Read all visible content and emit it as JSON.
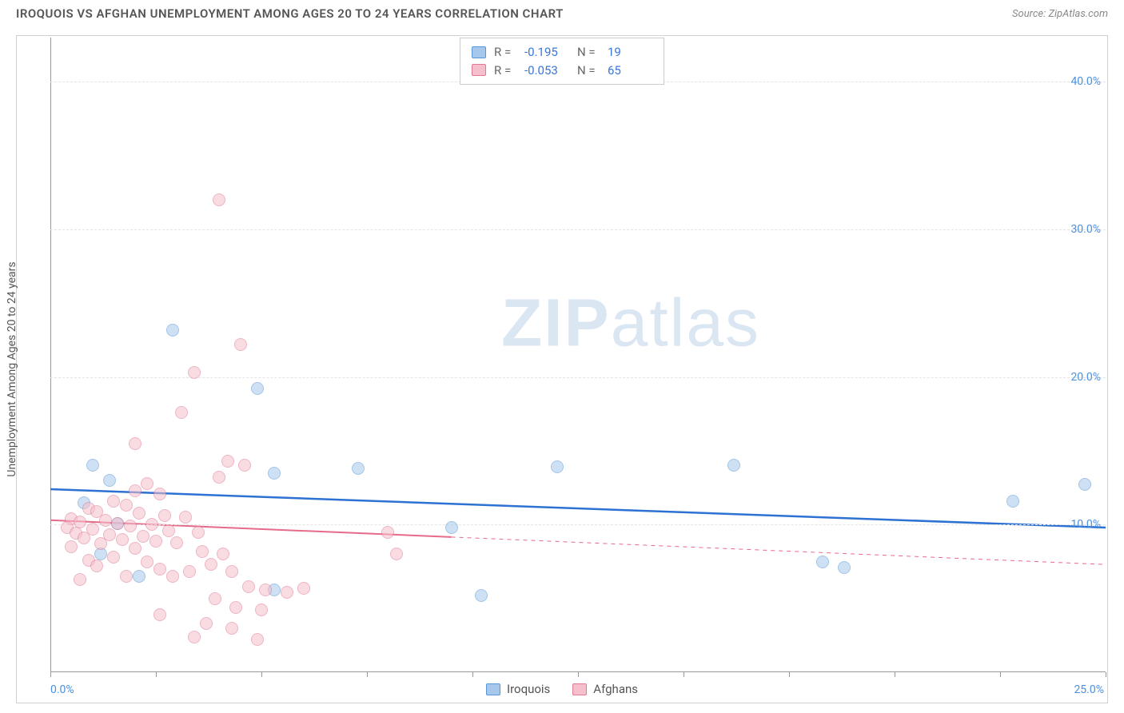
{
  "header": {
    "title": "IROQUOIS VS AFGHAN UNEMPLOYMENT AMONG AGES 20 TO 24 YEARS CORRELATION CHART",
    "source_prefix": "Source: ",
    "source_name": "ZipAtlas.com"
  },
  "chart": {
    "type": "scatter",
    "y_axis_label": "Unemployment Among Ages 20 to 24 years",
    "background_color": "#ffffff",
    "grid_color": "#e4e4e4",
    "axis_color": "#999999",
    "tick_label_color": "#4a90e2",
    "xlim": [
      0,
      25
    ],
    "ylim": [
      0,
      43
    ],
    "x_ticks": [
      0,
      2.5,
      5,
      7.5,
      10,
      12.5,
      15,
      17.5,
      20,
      22.5,
      25
    ],
    "y_ticks": [
      10,
      20,
      30,
      40
    ],
    "x_tick_labels": {
      "0": "0.0%",
      "25": "25.0%"
    },
    "y_tick_labels": {
      "10": "10.0%",
      "20": "20.0%",
      "30": "30.0%",
      "40": "40.0%"
    },
    "marker_radius": 8,
    "marker_stroke_width": 1.5,
    "watermark": {
      "zip": "ZIP",
      "atlas": "atlas"
    },
    "series": [
      {
        "name": "Iroquois",
        "fill_color": "#a6c8ec",
        "stroke_color": "#5a96d6",
        "fill_opacity": 0.55,
        "points": [
          [
            2.9,
            23.2
          ],
          [
            1.2,
            8.0
          ],
          [
            2.1,
            6.5
          ],
          [
            4.9,
            19.2
          ],
          [
            5.3,
            13.5
          ],
          [
            7.3,
            13.8
          ],
          [
            12.0,
            13.9
          ],
          [
            16.2,
            14.0
          ],
          [
            24.5,
            12.7
          ],
          [
            22.8,
            11.6
          ],
          [
            18.3,
            7.5
          ],
          [
            18.8,
            7.1
          ],
          [
            10.2,
            5.2
          ],
          [
            5.3,
            5.6
          ],
          [
            9.5,
            9.8
          ],
          [
            1.0,
            14.0
          ],
          [
            1.4,
            13.0
          ],
          [
            0.8,
            11.5
          ],
          [
            1.6,
            10.1
          ]
        ],
        "trend": {
          "color": "#2d72d2",
          "width": 2.5,
          "solid_xrange": [
            0,
            25
          ],
          "y_at_x0": 12.4,
          "y_at_xmax": 9.8,
          "dashed_xrange": null
        }
      },
      {
        "name": "Afghans",
        "fill_color": "#f5bfcb",
        "stroke_color": "#e07a94",
        "fill_opacity": 0.55,
        "points": [
          [
            4.0,
            32.0
          ],
          [
            4.5,
            22.2
          ],
          [
            3.4,
            20.3
          ],
          [
            3.1,
            17.6
          ],
          [
            4.2,
            14.3
          ],
          [
            4.6,
            14.0
          ],
          [
            4.0,
            13.2
          ],
          [
            2.3,
            12.8
          ],
          [
            2.0,
            12.3
          ],
          [
            2.6,
            12.1
          ],
          [
            1.5,
            11.6
          ],
          [
            1.8,
            11.3
          ],
          [
            0.9,
            11.1
          ],
          [
            1.1,
            10.9
          ],
          [
            2.1,
            10.8
          ],
          [
            2.7,
            10.6
          ],
          [
            3.2,
            10.5
          ],
          [
            0.5,
            10.4
          ],
          [
            1.3,
            10.3
          ],
          [
            0.7,
            10.2
          ],
          [
            1.6,
            10.1
          ],
          [
            2.4,
            10.0
          ],
          [
            1.9,
            9.9
          ],
          [
            0.4,
            9.8
          ],
          [
            1.0,
            9.7
          ],
          [
            2.8,
            9.6
          ],
          [
            3.5,
            9.5
          ],
          [
            0.6,
            9.4
          ],
          [
            1.4,
            9.3
          ],
          [
            2.2,
            9.2
          ],
          [
            0.8,
            9.1
          ],
          [
            1.7,
            9.0
          ],
          [
            2.5,
            8.9
          ],
          [
            3.0,
            8.8
          ],
          [
            1.2,
            8.7
          ],
          [
            0.5,
            8.5
          ],
          [
            2.0,
            8.4
          ],
          [
            3.6,
            8.2
          ],
          [
            4.1,
            8.0
          ],
          [
            1.5,
            7.8
          ],
          [
            0.9,
            7.6
          ],
          [
            2.3,
            7.5
          ],
          [
            3.8,
            7.3
          ],
          [
            1.1,
            7.2
          ],
          [
            2.6,
            7.0
          ],
          [
            4.3,
            6.8
          ],
          [
            3.3,
            6.8
          ],
          [
            1.8,
            6.5
          ],
          [
            0.7,
            6.3
          ],
          [
            2.9,
            6.5
          ],
          [
            4.7,
            5.8
          ],
          [
            5.1,
            5.6
          ],
          [
            5.6,
            5.4
          ],
          [
            6.0,
            5.7
          ],
          [
            3.9,
            5.0
          ],
          [
            4.4,
            4.4
          ],
          [
            5.0,
            4.2
          ],
          [
            2.6,
            3.9
          ],
          [
            3.7,
            3.3
          ],
          [
            4.3,
            3.0
          ],
          [
            4.9,
            2.2
          ],
          [
            3.4,
            2.4
          ],
          [
            8.2,
            8.0
          ],
          [
            8.0,
            9.5
          ],
          [
            2.0,
            15.5
          ]
        ],
        "trend": {
          "color": "#e66b8a",
          "width": 2,
          "solid_xrange": [
            0,
            9.5
          ],
          "dashed_xrange": [
            9.5,
            25
          ],
          "y_at_x0": 10.3,
          "y_at_xmax": 7.3
        }
      }
    ]
  },
  "stats_box": {
    "rows": [
      {
        "swatch_fill": "#a6c8ec",
        "swatch_stroke": "#5a96d6",
        "r_label": "R =",
        "r_value": "-0.195",
        "n_label": "N =",
        "n_value": "19"
      },
      {
        "swatch_fill": "#f5bfcb",
        "swatch_stroke": "#e07a94",
        "r_label": "R =",
        "r_value": "-0.053",
        "n_label": "N =",
        "n_value": "65"
      }
    ]
  },
  "bottom_legend": {
    "items": [
      {
        "swatch_fill": "#a6c8ec",
        "swatch_stroke": "#5a96d6",
        "label": "Iroquois"
      },
      {
        "swatch_fill": "#f5bfcb",
        "swatch_stroke": "#e07a94",
        "label": "Afghans"
      }
    ]
  }
}
